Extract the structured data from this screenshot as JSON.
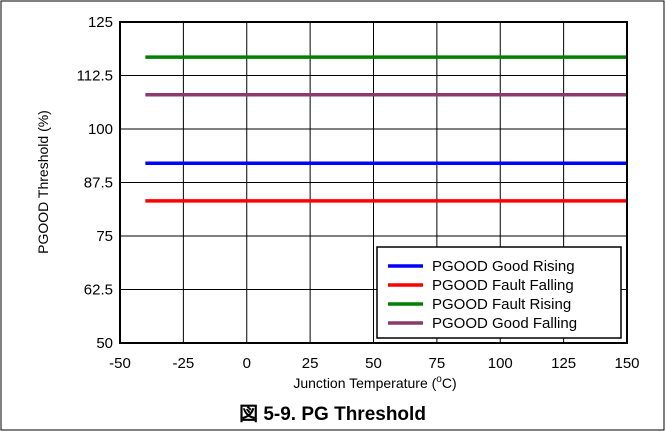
{
  "figure_caption": "図 5-9. PG Threshold",
  "chart_data": {
    "type": "line",
    "title": "",
    "xlabel_prefix": "Junction Temperature (",
    "xlabel_sup": "o",
    "xlabel_suffix": "C)",
    "ylabel": "PGOOD Threshold (%)",
    "xlim": [
      -50,
      150
    ],
    "ylim": [
      50,
      125
    ],
    "xticks": [
      -50,
      -25,
      0,
      25,
      50,
      75,
      100,
      125,
      150
    ],
    "yticks": [
      50,
      62.5,
      75,
      87.5,
      100,
      112.5,
      125
    ],
    "xtick_labels": [
      "-50",
      "-25",
      "0",
      "25",
      "50",
      "75",
      "100",
      "125",
      "150"
    ],
    "ytick_labels": [
      "50",
      "62.5",
      "75",
      "87.5",
      "100",
      "112.5",
      "125"
    ],
    "grid": true,
    "legend_position": "bottom-right",
    "series": [
      {
        "name": "PGOOD Good Rising",
        "color": "#0000ff",
        "x": [
          -40,
          -25,
          0,
          25,
          50,
          75,
          100,
          125,
          150
        ],
        "y": [
          92,
          92,
          92,
          92,
          92,
          92,
          92,
          92,
          92
        ]
      },
      {
        "name": "PGOOD Fault Falling",
        "color": "#ff0000",
        "x": [
          -40,
          -25,
          0,
          25,
          50,
          75,
          100,
          125,
          150
        ],
        "y": [
          83.2,
          83.2,
          83.2,
          83.2,
          83.2,
          83.2,
          83.2,
          83.2,
          83.2
        ]
      },
      {
        "name": "PGOOD Fault Rising",
        "color": "#008000",
        "x": [
          -40,
          -25,
          0,
          25,
          50,
          75,
          100,
          125,
          150
        ],
        "y": [
          116.8,
          116.8,
          116.8,
          116.8,
          116.8,
          116.8,
          116.8,
          116.8,
          116.8
        ]
      },
      {
        "name": "PGOOD Good Falling",
        "color": "#8b3a6b",
        "x": [
          -40,
          -25,
          0,
          25,
          50,
          75,
          100,
          125,
          150
        ],
        "y": [
          108,
          108,
          108,
          108,
          108,
          108,
          108,
          108,
          108
        ]
      }
    ]
  }
}
